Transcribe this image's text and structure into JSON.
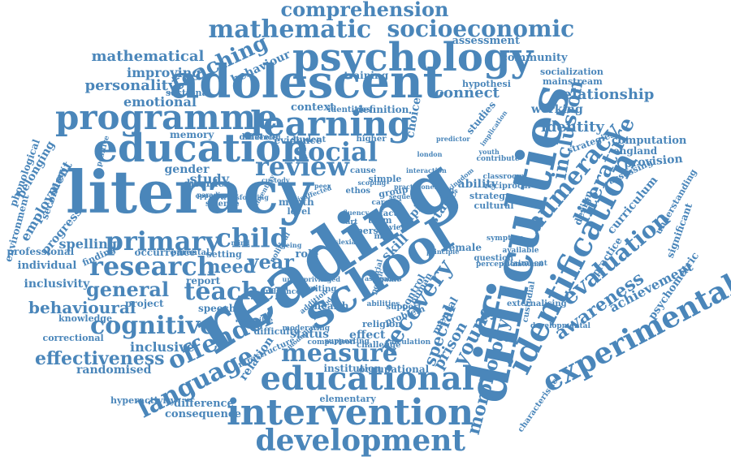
{
  "color": "#4a86ba",
  "words": [
    {
      "text": "reading"
    },
    {
      "text": "literacy"
    },
    {
      "text": "difficulties"
    },
    {
      "text": "adolescent"
    },
    {
      "text": "school"
    },
    {
      "text": "psychology"
    },
    {
      "text": "education"
    },
    {
      "text": "programme"
    },
    {
      "text": "learning"
    },
    {
      "text": "educational"
    },
    {
      "text": "intervention"
    },
    {
      "text": "development"
    },
    {
      "text": "identification"
    },
    {
      "text": "experimental"
    },
    {
      "text": "research"
    },
    {
      "text": "primary"
    },
    {
      "text": "child"
    },
    {
      "text": "review"
    },
    {
      "text": "social"
    },
    {
      "text": "teacher"
    },
    {
      "text": "measure"
    },
    {
      "text": "language"
    },
    {
      "text": "offender"
    },
    {
      "text": "cognitive"
    },
    {
      "text": "mathematic"
    },
    {
      "text": "socioeconomic"
    },
    {
      "text": "comprehension"
    },
    {
      "text": "numeracy"
    },
    {
      "text": "evaluation"
    },
    {
      "text": "literature"
    },
    {
      "text": "recovery"
    },
    {
      "text": "morphology"
    },
    {
      "text": "awareness"
    },
    {
      "text": "teaching"
    },
    {
      "text": "effectiveness"
    },
    {
      "text": "behavioural"
    },
    {
      "text": "general"
    },
    {
      "text": "inclusion"
    },
    {
      "text": "year"
    },
    {
      "text": "need"
    },
    {
      "text": "young"
    },
    {
      "text": "prison"
    },
    {
      "text": "special"
    },
    {
      "text": "relationship"
    },
    {
      "text": "identity"
    },
    {
      "text": "mathematical"
    },
    {
      "text": "personality"
    },
    {
      "text": "emotional"
    },
    {
      "text": "improving"
    },
    {
      "text": "spelling"
    },
    {
      "text": "inclusivity"
    },
    {
      "text": "inclusive"
    },
    {
      "text": "randomised"
    },
    {
      "text": "employment"
    },
    {
      "text": "belonging"
    },
    {
      "text": "phonological"
    },
    {
      "text": "professional"
    },
    {
      "text": "individual"
    },
    {
      "text": "study"
    },
    {
      "text": "gender"
    },
    {
      "text": "memory"
    },
    {
      "text": "context"
    },
    {
      "text": "connect"
    },
    {
      "text": "community"
    },
    {
      "text": "assessment"
    },
    {
      "text": "working"
    },
    {
      "text": "mainstream"
    },
    {
      "text": "socialization"
    },
    {
      "text": "computation"
    },
    {
      "text": "england"
    },
    {
      "text": "provision"
    },
    {
      "text": "curriculum"
    },
    {
      "text": "achievement"
    },
    {
      "text": "psychometric"
    },
    {
      "text": "significant"
    },
    {
      "text": "practice"
    },
    {
      "text": "design"
    },
    {
      "text": "strategies"
    },
    {
      "text": "status"
    },
    {
      "text": "effect"
    },
    {
      "text": "institution"
    },
    {
      "text": "occupational"
    },
    {
      "text": "elementary"
    },
    {
      "text": "difference"
    },
    {
      "text": "consequence"
    },
    {
      "text": "relation"
    },
    {
      "text": "speech"
    },
    {
      "text": "knowledge"
    },
    {
      "text": "correctional"
    },
    {
      "text": "hyperactivity"
    },
    {
      "text": "project"
    },
    {
      "text": "report"
    },
    {
      "text": "occurrence"
    },
    {
      "text": "finding"
    },
    {
      "text": "progress"
    },
    {
      "text": "environment"
    },
    {
      "text": "secondary"
    },
    {
      "text": "training"
    },
    {
      "text": "behaviour"
    },
    {
      "text": "hypothesi"
    },
    {
      "text": "definition"
    },
    {
      "text": "identities"
    },
    {
      "text": "sectional"
    },
    {
      "text": "evidence"
    },
    {
      "text": "student"
    },
    {
      "text": "different"
    },
    {
      "text": "choice"
    },
    {
      "text": "studies"
    },
    {
      "text": "pupil"
    },
    {
      "text": "stage"
    },
    {
      "text": "skill"
    },
    {
      "text": "role"
    },
    {
      "text": "ability"
    },
    {
      "text": "strategy"
    },
    {
      "text": "cultural"
    },
    {
      "text": "reciprocal"
    },
    {
      "text": "classroom"
    },
    {
      "text": "question"
    },
    {
      "text": "perception"
    },
    {
      "text": "custodial"
    },
    {
      "text": "characteristic"
    },
    {
      "text": "control"
    },
    {
      "text": "health"
    },
    {
      "text": "difficulty"
    },
    {
      "text": "setting"
    },
    {
      "text": "parental"
    },
    {
      "text": "disorder"
    },
    {
      "text": "science"
    },
    {
      "text": "month"
    },
    {
      "text": "level"
    },
    {
      "text": "term"
    },
    {
      "text": "group"
    },
    {
      "text": "challenge"
    },
    {
      "text": "comparison"
    },
    {
      "text": "religion"
    },
    {
      "text": "person"
    },
    {
      "text": "factor"
    },
    {
      "text": "view"
    },
    {
      "text": "more"
    },
    {
      "text": "simple"
    },
    {
      "text": "cause"
    },
    {
      "text": "ethos"
    },
    {
      "text": "higher"
    },
    {
      "text": "mental"
    },
    {
      "text": "problem"
    },
    {
      "text": "support"
    },
    {
      "text": "female"
    },
    {
      "text": "contribute"
    },
    {
      "text": "understanding"
    },
    {
      "text": "assessing"
    },
    {
      "text": "externalising"
    },
    {
      "text": "developmental"
    },
    {
      "text": "attainment"
    },
    {
      "text": "symptom"
    },
    {
      "text": "available"
    },
    {
      "text": "abilities"
    },
    {
      "text": "infrastructure"
    },
    {
      "text": "moderating"
    },
    {
      "text": "supporting"
    },
    {
      "text": "calculation"
    },
    {
      "text": "human"
    },
    {
      "text": "politic"
    },
    {
      "text": "game"
    },
    {
      "text": "writing"
    },
    {
      "text": "trial"
    },
    {
      "text": "art"
    },
    {
      "text": "careers"
    },
    {
      "text": "political"
    },
    {
      "text": "paradigm"
    },
    {
      "text": "addition"
    },
    {
      "text": "influence"
    },
    {
      "text": "method"
    },
    {
      "text": "modelling"
    },
    {
      "text": "underprivileged"
    },
    {
      "text": "influenced"
    },
    {
      "text": "implication"
    },
    {
      "text": "positive"
    },
    {
      "text": "opportunity"
    },
    {
      "text": "transforming"
    },
    {
      "text": "inventory"
    },
    {
      "text": "disaffected"
    },
    {
      "text": "sequence"
    },
    {
      "text": "london"
    },
    {
      "text": "kingdom"
    },
    {
      "text": "national"
    },
    {
      "text": "aspiration"
    },
    {
      "text": "scoping"
    },
    {
      "text": "practitioner"
    },
    {
      "text": "principle"
    },
    {
      "text": "custody"
    },
    {
      "text": "ageing"
    },
    {
      "text": "accessible"
    },
    {
      "text": "predictor"
    },
    {
      "text": "fluency"
    },
    {
      "text": "dyslexia"
    },
    {
      "text": "interaction"
    },
    {
      "text": "youth"
    },
    {
      "text": "peer"
    },
    {
      "text": "mind"
    },
    {
      "text": "skills"
    },
    {
      "text": "family"
    },
    {
      "text": "age"
    },
    {
      "text": "task"
    },
    {
      "text": "rate"
    }
  ]
}
